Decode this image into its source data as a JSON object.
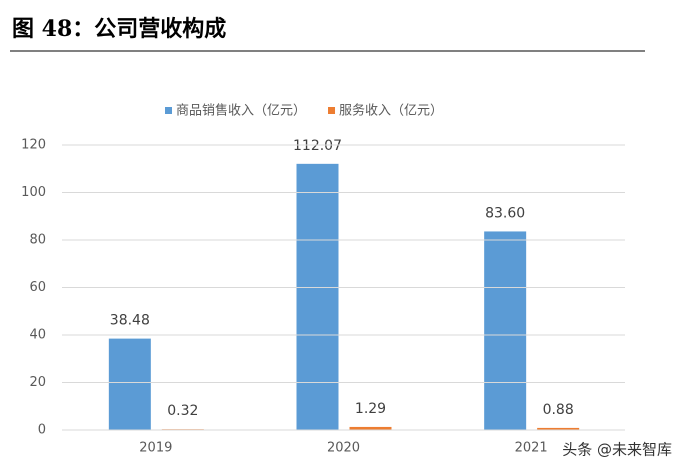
{
  "chart_data": {
    "type": "bar",
    "title": "图 48：公司营收构成",
    "categories": [
      "2019",
      "2020",
      "2021"
    ],
    "series": [
      {
        "name": "商品销售收入（亿元）",
        "color": "#5b9bd5",
        "values": [
          38.48,
          112.07,
          83.6
        ],
        "value_labels": [
          "38.48",
          "112.07",
          "83.60"
        ]
      },
      {
        "name": "服务收入（亿元）",
        "color": "#ed7d31",
        "values": [
          0.32,
          1.29,
          0.88
        ],
        "value_labels": [
          "0.32",
          "1.29",
          "0.88"
        ]
      }
    ],
    "ylim": [
      0,
      120
    ],
    "yticks": [
      0,
      20,
      40,
      60,
      80,
      100,
      120
    ],
    "grid": true,
    "legend": "top",
    "watermark": "头条 @未来智库"
  }
}
